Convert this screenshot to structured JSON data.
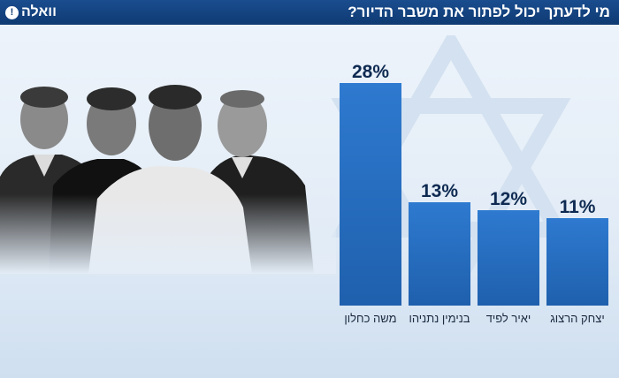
{
  "header": {
    "logo_text": "וואלה",
    "logo_badge": "!",
    "title": "מי לדעתך יכול לפתור את משבר הדיור?"
  },
  "colors": {
    "bar": "#2b73c4",
    "bar_dark": "#1a5aa6",
    "header": "#123f7a"
  },
  "chart_data": {
    "type": "bar",
    "categories": [
      "משה כחלון",
      "בנימין נתניהו",
      "יאיר לפיד",
      "יצחק הרצוג"
    ],
    "values": [
      28,
      13,
      12,
      11
    ],
    "value_labels": [
      "28%",
      "13%",
      "12%",
      "11%"
    ],
    "title": "מי לדעתך יכול לפתור את משבר הדיור?",
    "xlabel": "",
    "ylabel": "",
    "ylim": [
      0,
      28
    ],
    "grid": false,
    "legend": "none"
  }
}
